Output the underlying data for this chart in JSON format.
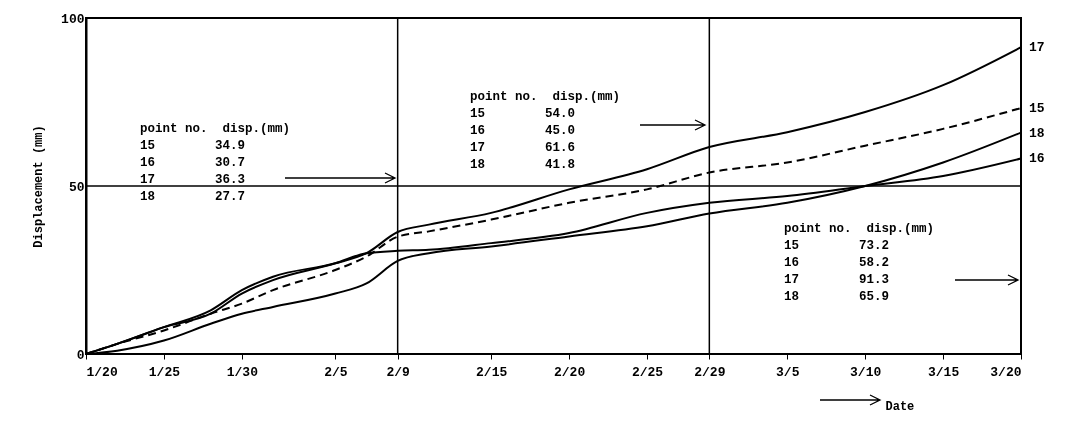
{
  "chart_data": {
    "type": "line",
    "xlabel": "Date",
    "ylabel": "Displacement (mm)",
    "x": [
      "--01-20",
      "--01-22",
      "--01-25",
      "--01-28",
      "--01-30",
      "--02-01",
      "--02-05",
      "--02-07",
      "--02-09",
      "--02-11",
      "--02-15",
      "--02-20",
      "--02-25",
      "--02-29",
      "--03-05",
      "--03-10",
      "--03-15",
      "--03-20"
    ],
    "series": [
      {
        "name": "17",
        "color": "#000000",
        "line_style": "solid",
        "values": [
          0,
          3,
          8,
          13,
          19,
          23,
          27,
          30,
          36.3,
          38.5,
          42,
          49,
          55,
          61.6,
          66,
          72,
          80,
          91.3
        ]
      },
      {
        "name": "15",
        "color": "#000000",
        "line_style": "dashed",
        "values": [
          0,
          3,
          7,
          12,
          15,
          19,
          25,
          29,
          34.9,
          36.5,
          40,
          45,
          49,
          54.0,
          57,
          62,
          67,
          73.2
        ]
      },
      {
        "name": "18",
        "color": "#000000",
        "line_style": "solid",
        "values": [
          0,
          1,
          4,
          9,
          12,
          14,
          18,
          21,
          27.7,
          30,
          32,
          35,
          38,
          41.8,
          45,
          50,
          57,
          65.9
        ]
      },
      {
        "name": "16",
        "color": "#000000",
        "line_style": "solid",
        "values": [
          0,
          3,
          8,
          12,
          18,
          22,
          27,
          30,
          30.7,
          31,
          33,
          36,
          42,
          45.0,
          47,
          50,
          53,
          58.2
        ]
      }
    ],
    "xlim": [
      "--01-20",
      "--03-20"
    ],
    "xticks": [
      {
        "value": "--01-20",
        "label": "1/20"
      },
      {
        "value": "--01-25",
        "label": "1/25"
      },
      {
        "value": "--01-30",
        "label": "1/30"
      },
      {
        "value": "--02-05",
        "label": "2/5"
      },
      {
        "value": "--02-09",
        "label": "2/9"
      },
      {
        "value": "--02-15",
        "label": "2/15"
      },
      {
        "value": "--02-20",
        "label": "2/20"
      },
      {
        "value": "--02-25",
        "label": "2/25"
      },
      {
        "value": "--02-29",
        "label": "2/29"
      },
      {
        "value": "--03-05",
        "label": "3/5"
      },
      {
        "value": "--03-10",
        "label": "3/10"
      },
      {
        "value": "--03-15",
        "label": "3/15"
      },
      {
        "value": "--03-20",
        "label": "3/20"
      }
    ],
    "ylim": [
      0,
      100
    ],
    "yticks": [
      0,
      50,
      100
    ],
    "ref_lines": [
      {
        "axis": "x",
        "value": "--02-09"
      },
      {
        "axis": "x",
        "value": "--02-29"
      },
      {
        "axis": "y",
        "value": 50
      }
    ],
    "annotations": [
      "point no.  disp.(mm)\n   15        34.9\n   16        30.7\n   17        36.3\n   18        27.7",
      "point no.  disp.(mm)\n   15        54.0\n   16        45.0\n   17        61.6\n   18        41.8",
      "point no.  disp.(mm)\n   15        73.2\n   16        58.2\n   17        91.3\n   18        65.9"
    ],
    "marker": "none"
  }
}
